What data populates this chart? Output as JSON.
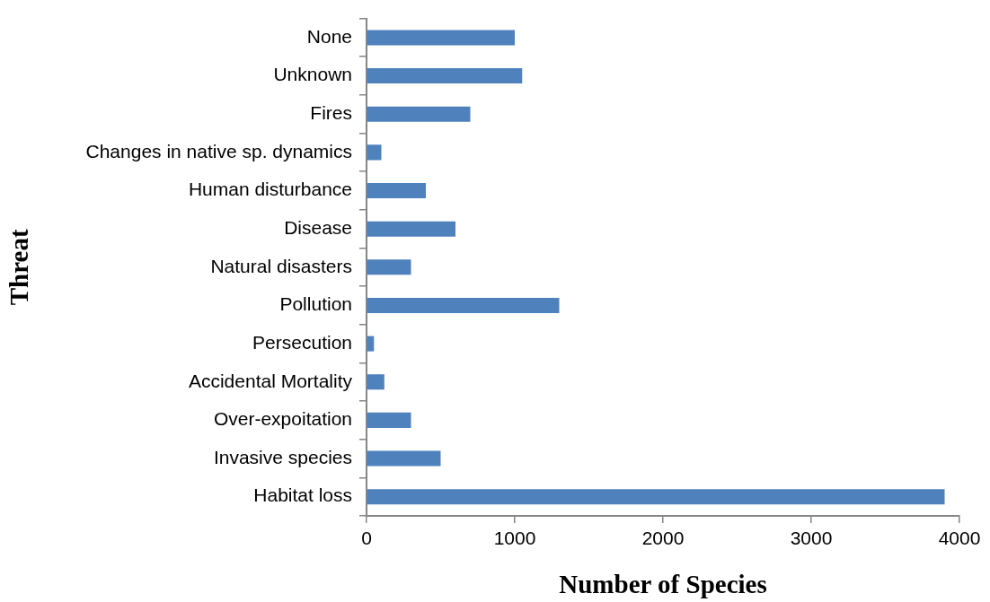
{
  "chart_data": {
    "type": "bar",
    "orientation": "horizontal",
    "xlabel": "Number of Species",
    "ylabel": "Threat",
    "categories": [
      "None",
      "Unknown",
      "Fires",
      "Changes in native sp. dynamics",
      "Human disturbance",
      "Disease",
      "Natural disasters",
      "Pollution",
      "Persecution",
      "Accidental Mortality",
      "Over-expoitation",
      "Invasive species",
      "Habitat loss"
    ],
    "values": [
      1000,
      1050,
      700,
      100,
      400,
      600,
      300,
      1300,
      50,
      120,
      300,
      500,
      3900
    ],
    "color": "#4f81bd",
    "xlim": [
      0,
      4000
    ],
    "xticks": [
      0,
      1000,
      2000,
      3000,
      4000
    ],
    "grid": false
  }
}
